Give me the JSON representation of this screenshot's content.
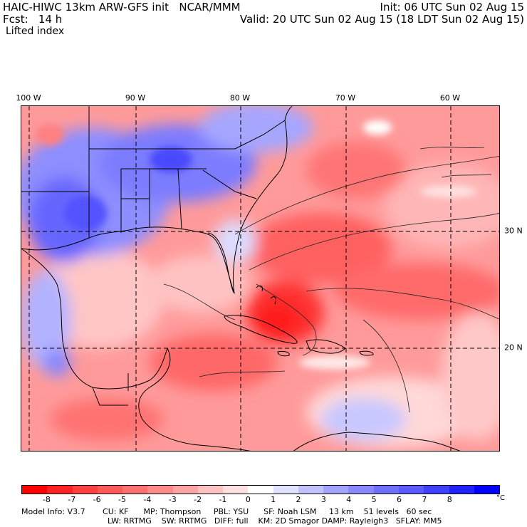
{
  "header": {
    "line1_left": "HAIC-HIWC 13km ARW-GFS init   NCAR/MMM",
    "line1_right": "Init: 06 UTC Sun 02 Aug 15",
    "line2_left": "Fcst:   14 h",
    "line2_right": "Valid: 20 UTC Sun 02 Aug 15 (18 LDT Sun 02 Aug 15)",
    "field": "Lifted index"
  },
  "map": {
    "longitude_labels": [
      "100 W",
      "90 W",
      "80 W",
      "70 W",
      "60 W"
    ],
    "latitude_labels": [
      "30 N",
      "20 N"
    ]
  },
  "colorbar": {
    "ticks": [
      "-8",
      "-7",
      "-6",
      "-5",
      "-4",
      "-3",
      "-2",
      "-1",
      "0",
      "1",
      "2",
      "3",
      "4",
      "5",
      "6",
      "7",
      "8"
    ],
    "unit": "°C",
    "colors": [
      "#ff0000",
      "#ff2222",
      "#ff4040",
      "#ff5a5a",
      "#ff7070",
      "#ff8a8a",
      "#ffa4a4",
      "#ffc2c2",
      "#ffe0e0",
      "#ffffff",
      "#e0e0ff",
      "#c2c2ff",
      "#a4a4ff",
      "#8a8aff",
      "#7070ff",
      "#5a5aff",
      "#4040ff",
      "#2222ff",
      "#0000ff"
    ]
  },
  "footer": {
    "line1": "Model Info: V3.7       CU: KF      MP: Thompson     PBL: YSU      SF: Noah LSM     13 km    51 levels   60 sec",
    "line2": "LW: RRTMG    SW: RRTMG   DIFF: full    KM: 2D Smagor DAMP: Rayleigh3   SFLAY: MM5"
  }
}
